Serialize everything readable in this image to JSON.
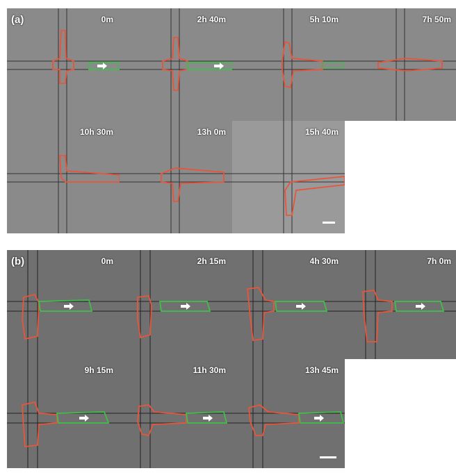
{
  "panel_a": {
    "label": "(a)",
    "frames": [
      "0m",
      "2h 40m",
      "5h 10m",
      "7h 50m",
      "10h 30m",
      "13h 0m",
      "15h 40m"
    ]
  },
  "panel_b": {
    "label": "(b)",
    "frames": [
      "0m",
      "2h 15m",
      "4h 30m",
      "7h 0m",
      "9h 15m",
      "11h 30m",
      "13h 45m"
    ]
  },
  "colors": {
    "cell_outline_red": "#e8553a",
    "cell_outline_green": "#3fbf4a",
    "arrow": "#ffffff"
  }
}
